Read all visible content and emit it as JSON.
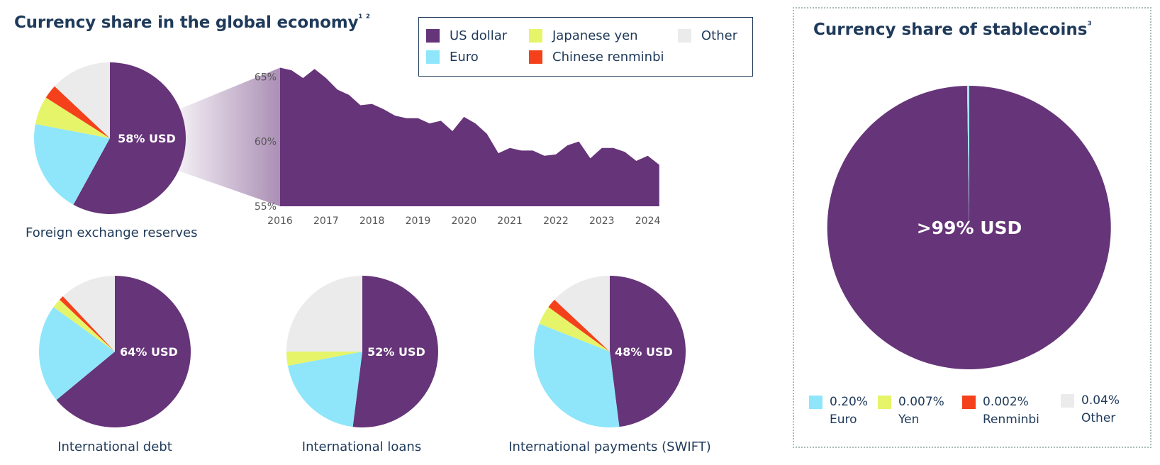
{
  "colors": {
    "usd": "#663479",
    "eur": "#8fe6fa",
    "jpy": "#e6f46a",
    "cny": "#f4411b",
    "other": "#ebebeb",
    "text": "#1f3a5a"
  },
  "header": {
    "title": "Currency share in the global economy",
    "title_superscript": "¹ ²"
  },
  "legend": {
    "items": [
      {
        "label": "US dollar",
        "key": "usd"
      },
      {
        "label": "Japanese yen",
        "key": "jpy"
      },
      {
        "label": "Other",
        "key": "other"
      },
      {
        "label": "Euro",
        "key": "eur"
      },
      {
        "label": "Chinese renminbi",
        "key": "cny"
      }
    ]
  },
  "stablecoins": {
    "title": "Currency share of stablecoins",
    "title_superscript": "³",
    "legend": [
      {
        "value": "0.20%",
        "name": "Euro",
        "key": "eur"
      },
      {
        "value": "0.007%",
        "name": "Yen",
        "key": "jpy"
      },
      {
        "value": "0.002%",
        "name": "Renminbi",
        "key": "cny"
      },
      {
        "value": "0.04%",
        "name": "Other",
        "key": "other"
      }
    ]
  },
  "chart_data": [
    {
      "type": "pie",
      "title": "Foreign exchange reserves",
      "center_label": "58% USD",
      "slices": [
        {
          "name": "US dollar",
          "key": "usd",
          "value": 58
        },
        {
          "name": "Euro",
          "key": "eur",
          "value": 20
        },
        {
          "name": "Japanese yen",
          "key": "jpy",
          "value": 6
        },
        {
          "name": "Chinese renminbi",
          "key": "cny",
          "value": 3
        },
        {
          "name": "Other",
          "key": "other",
          "value": 13
        }
      ]
    },
    {
      "type": "area",
      "ylim": [
        55,
        66
      ],
      "yticks": [
        55,
        60,
        65
      ],
      "ytick_labels": [
        "55%",
        "60%",
        "65%"
      ],
      "xlim": [
        2016,
        2024.5
      ],
      "xticks": [
        "2016",
        "2017",
        "2018",
        "2019",
        "2020",
        "2021",
        "2022",
        "2023",
        "2024"
      ],
      "series": [
        {
          "key": "usd",
          "x": [
            2016,
            2016.25,
            2016.5,
            2016.75,
            2017,
            2017.25,
            2017.5,
            2017.75,
            2018,
            2018.25,
            2018.5,
            2018.75,
            2019,
            2019.25,
            2019.5,
            2019.75,
            2020,
            2020.25,
            2020.5,
            2020.75,
            2021,
            2021.25,
            2021.5,
            2021.75,
            2022,
            2022.25,
            2022.5,
            2022.75,
            2023,
            2023.25,
            2023.5,
            2023.75,
            2024,
            2024.25
          ],
          "y": [
            65.7,
            65.5,
            64.9,
            65.6,
            64.9,
            64.0,
            63.6,
            62.8,
            62.9,
            62.5,
            62.0,
            61.8,
            61.8,
            61.4,
            61.6,
            60.8,
            61.9,
            61.4,
            60.6,
            59.1,
            59.5,
            59.3,
            59.3,
            58.9,
            59.0,
            59.7,
            60.0,
            58.7,
            59.5,
            59.5,
            59.2,
            58.5,
            58.9,
            58.2
          ]
        }
      ]
    },
    {
      "type": "pie",
      "title": "International debt",
      "center_label": "64% USD",
      "slices": [
        {
          "name": "US dollar",
          "key": "usd",
          "value": 64
        },
        {
          "name": "Euro",
          "key": "eur",
          "value": 21
        },
        {
          "name": "Japanese yen",
          "key": "jpy",
          "value": 2
        },
        {
          "name": "Chinese renminbi",
          "key": "cny",
          "value": 1
        },
        {
          "name": "Other",
          "key": "other",
          "value": 12
        }
      ]
    },
    {
      "type": "pie",
      "title": "International loans",
      "center_label": "52% USD",
      "slices": [
        {
          "name": "US dollar",
          "key": "usd",
          "value": 52
        },
        {
          "name": "Euro",
          "key": "eur",
          "value": 20
        },
        {
          "name": "Japanese yen",
          "key": "jpy",
          "value": 3
        },
        {
          "name": "Chinese renminbi",
          "key": "cny",
          "value": 0
        },
        {
          "name": "Other",
          "key": "other",
          "value": 25
        }
      ]
    },
    {
      "type": "pie",
      "title": "International payments (SWIFT)",
      "center_label": "48% USD",
      "slices": [
        {
          "name": "US dollar",
          "key": "usd",
          "value": 48
        },
        {
          "name": "Euro",
          "key": "eur",
          "value": 33
        },
        {
          "name": "Japanese yen",
          "key": "jpy",
          "value": 4
        },
        {
          "name": "Chinese renminbi",
          "key": "cny",
          "value": 2
        },
        {
          "name": "Other",
          "key": "other",
          "value": 13
        }
      ]
    },
    {
      "type": "pie",
      "title": "Currency share of stablecoins",
      "center_label": ">99% USD",
      "slices": [
        {
          "name": "US dollar",
          "key": "usd",
          "value": 99.751
        },
        {
          "name": "Euro",
          "key": "eur",
          "value": 0.2
        },
        {
          "name": "Japanese yen",
          "key": "jpy",
          "value": 0.007
        },
        {
          "name": "Chinese renminbi",
          "key": "cny",
          "value": 0.002
        },
        {
          "name": "Other",
          "key": "other",
          "value": 0.04
        }
      ]
    }
  ]
}
